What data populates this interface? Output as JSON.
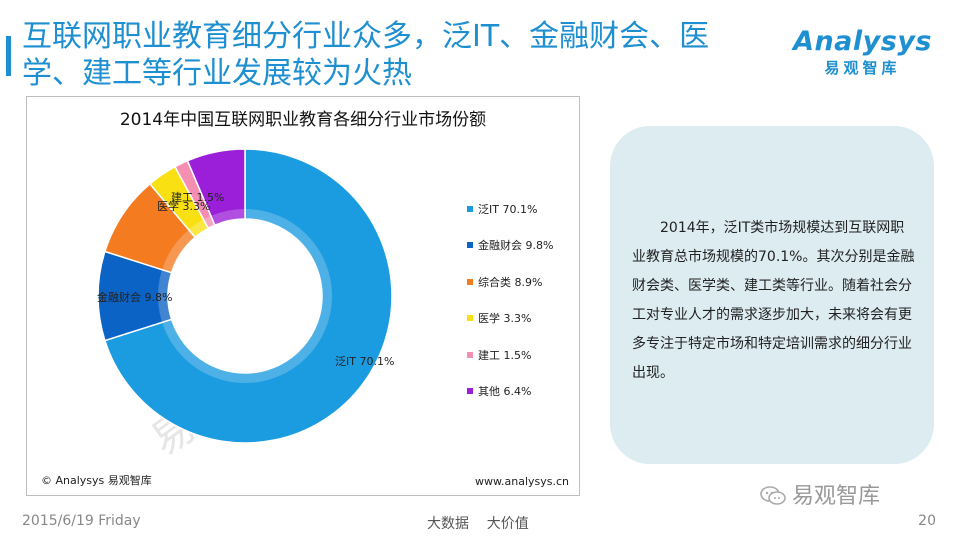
{
  "slide": {
    "title_line1": "互联网职业教育细分行业众多，泛IT、金融财会、医",
    "title_line2": "学、建工等行业发展较为火热",
    "brand_mark": "Analysys",
    "brand_sub": "易观智库",
    "accent_color": "#1e8fd0"
  },
  "chart_data": {
    "type": "pie",
    "donut": true,
    "title": "2014年中国互联网职业教育各细分行业市场份额",
    "legend_position": "right",
    "slices": [
      {
        "label": "泛IT",
        "value": 70.1,
        "display": "70.1%",
        "color": "#1c9ce0"
      },
      {
        "label": "金融财会",
        "value": 9.8,
        "display": "9.8%",
        "color": "#0c63c6"
      },
      {
        "label": "综合类",
        "value": 8.9,
        "display": "8.9%",
        "color": "#f47b20"
      },
      {
        "label": "医学",
        "value": 3.3,
        "display": "3.3%",
        "color": "#f8e012"
      },
      {
        "label": "建工",
        "value": 1.5,
        "display": "1.5%",
        "color": "#f48fb1"
      },
      {
        "label": "其他",
        "value": 6.4,
        "display": "6.4%",
        "color": "#9b1ed8"
      }
    ],
    "data_labels": [
      {
        "text": "泛IT 70.1%"
      },
      {
        "text": "金融财会 9.8%"
      },
      {
        "text": "医学 3.3%"
      },
      {
        "text": "建工 1.5%"
      }
    ],
    "legend": [
      {
        "text": "泛IT 70.1%"
      },
      {
        "text": "金融财会 9.8%"
      },
      {
        "text": "综合类 8.9%"
      },
      {
        "text": "医学 3.3%"
      },
      {
        "text": "建工 1.5%"
      },
      {
        "text": "其他 6.4%"
      }
    ],
    "source_left": "© Analysys 易观智库",
    "source_right": "www.analysys.cn",
    "watermark": "易观智库"
  },
  "note": {
    "text": "2014年，泛IT类市场规模达到互联网职业教育总市场规模的70.1%。其次分别是金融财会类、医学类、建工类等行业。随着社会分工对专业人才的需求逐步加大，未来将会有更多专注于特定市场和特定培训需求的细分行业出现。"
  },
  "footer": {
    "date": "2015/6/19 Friday",
    "center": "大数据    大价值",
    "page": "20",
    "wechat_label": "易观智库"
  }
}
